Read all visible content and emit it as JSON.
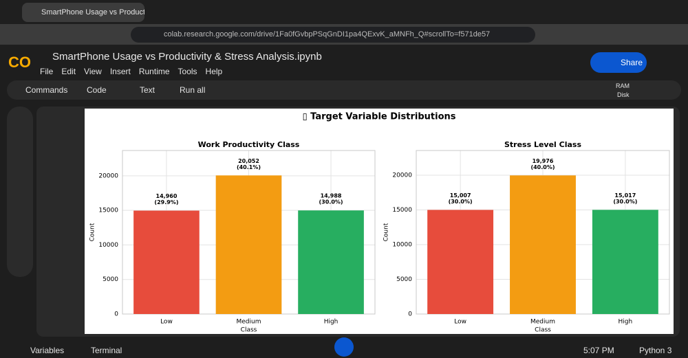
{
  "browser": {
    "tab_title": "SmartPhone Usage vs Productiv",
    "url": "colab.research.google.com/drive/1Fa0fGvbpPSqGnDI1pa4QExvK_aMNFh_Q#scrollTo=f571de57"
  },
  "notebook": {
    "title": "SmartPhone Usage vs Productivity & Stress Analysis.ipynb",
    "menu": [
      "File",
      "Edit",
      "View",
      "Insert",
      "Runtime",
      "Tools",
      "Help"
    ],
    "share": "Share",
    "toolbar": [
      "Commands",
      "Code",
      "Text",
      "Run all"
    ],
    "ram": "RAM",
    "disk": "Disk"
  },
  "status": {
    "variables": "Variables",
    "terminal": "Terminal",
    "time": "5:07 PM",
    "runtime": "Python 3"
  },
  "figure_title": "▯ Target Variable Distributions",
  "chart_data": [
    {
      "type": "bar",
      "title": "Work Productivity Class",
      "x_label": "Class",
      "y_label": "Count",
      "categories": [
        "Low",
        "Medium",
        "High"
      ],
      "values": [
        14960,
        20052,
        14988
      ],
      "value_labels": [
        "14,960",
        "20,052",
        "14,988"
      ],
      "percent_labels": [
        "(29.9%)",
        "(40.1%)",
        "(30.0%)"
      ],
      "colors": [
        "#e74c3c",
        "#f39c12",
        "#27ae60"
      ],
      "ylim": [
        0,
        23660
      ],
      "yticks": [
        0,
        5000,
        10000,
        15000,
        20000
      ],
      "grid": true
    },
    {
      "type": "bar",
      "title": "Stress Level Class",
      "x_label": "Class",
      "y_label": "Count",
      "categories": [
        "Low",
        "Medium",
        "High"
      ],
      "values": [
        15007,
        19976,
        15017
      ],
      "value_labels": [
        "15,007",
        "19,976",
        "15,017"
      ],
      "percent_labels": [
        "(30.0%)",
        "(40.0%)",
        "(30.0%)"
      ],
      "colors": [
        "#e74c3c",
        "#f39c12",
        "#27ae60"
      ],
      "ylim": [
        0,
        23570
      ],
      "yticks": [
        0,
        5000,
        10000,
        15000,
        20000
      ],
      "grid": true
    }
  ]
}
